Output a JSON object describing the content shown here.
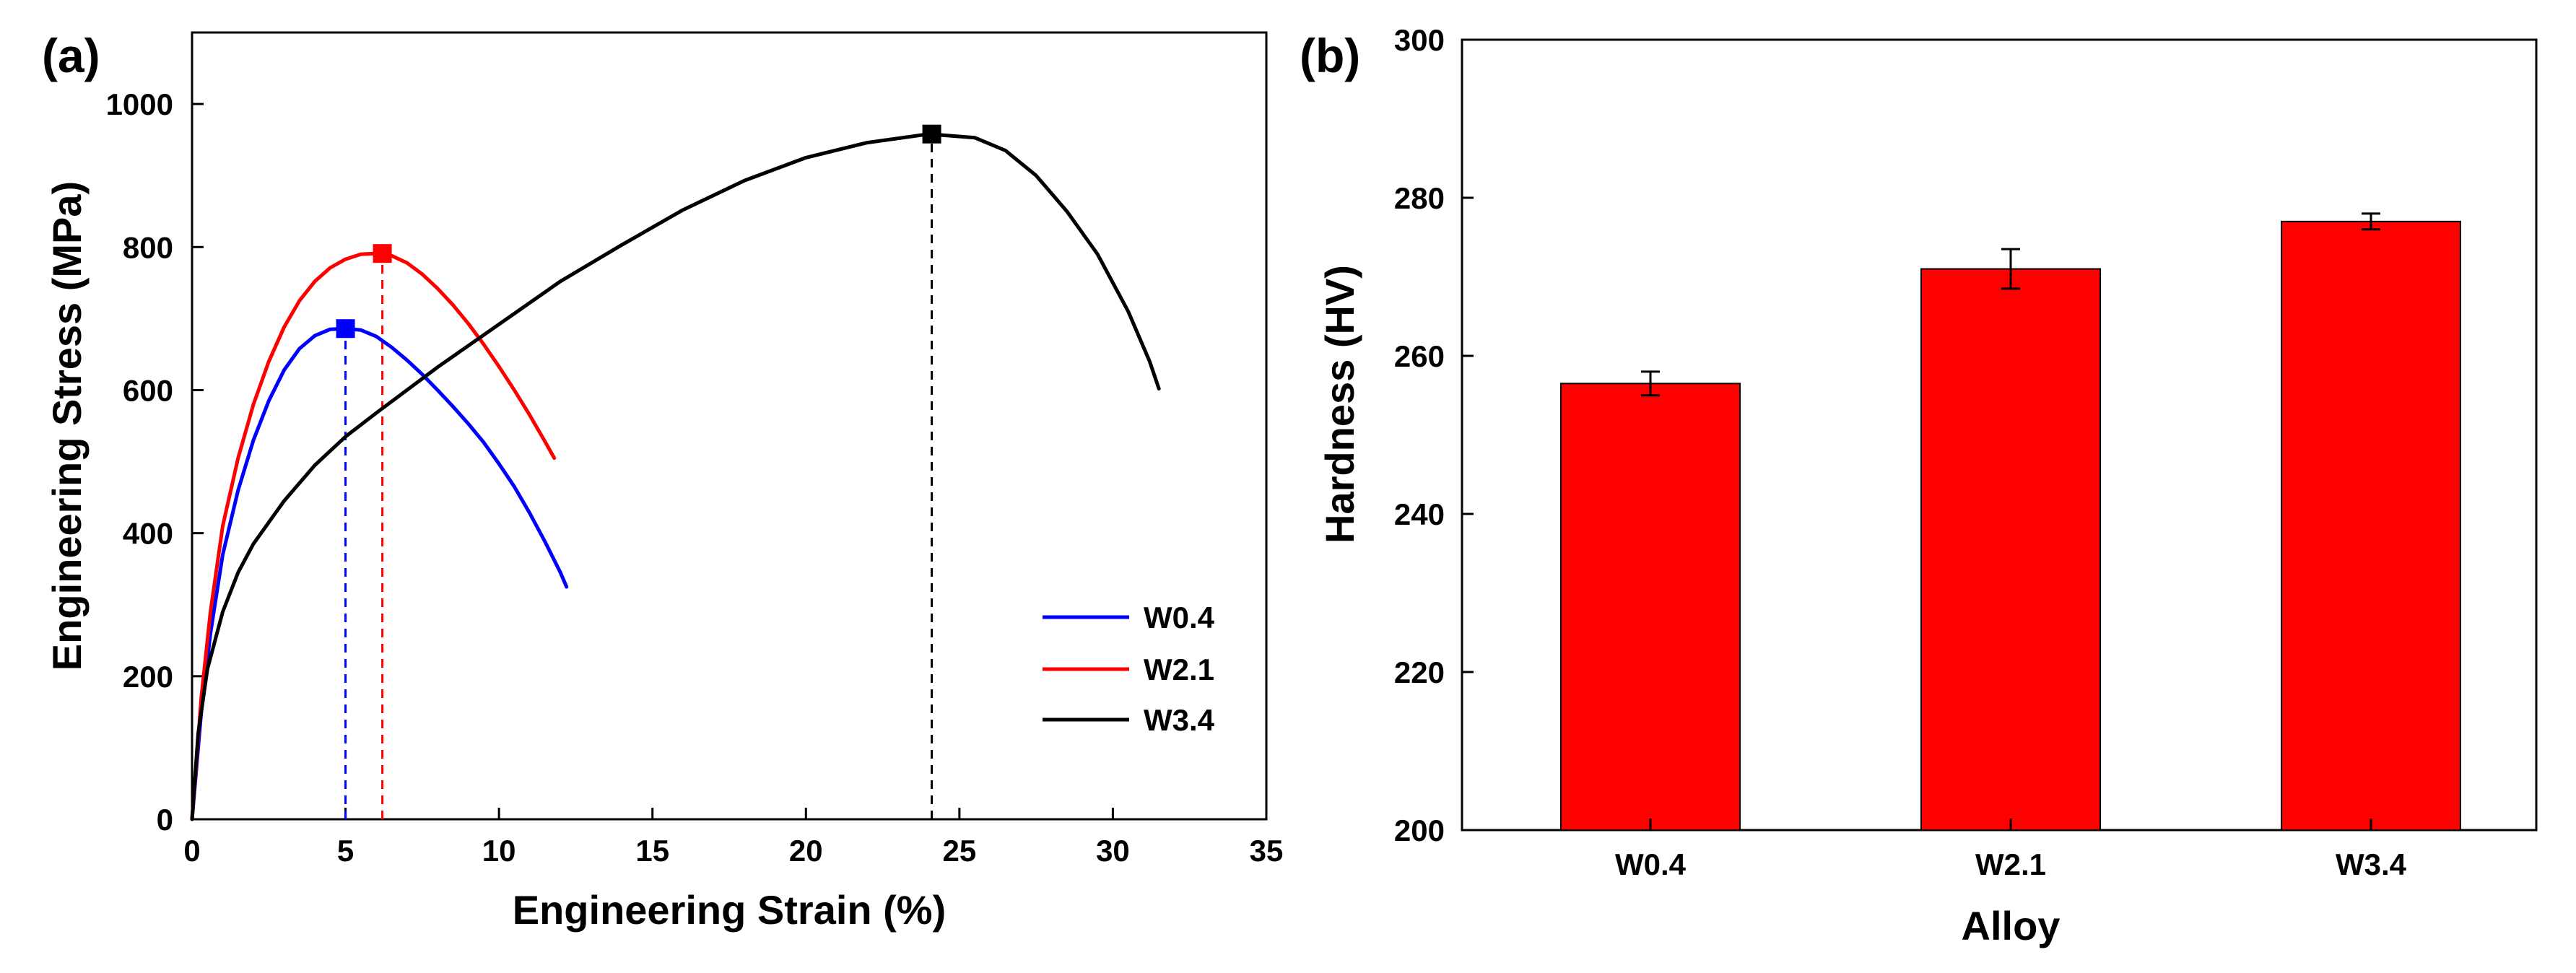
{
  "chart_data": [
    {
      "panel": "(a)",
      "type": "line",
      "xlabel": "Engineering Strain (%)",
      "ylabel": "Engineering Stress (MPa)",
      "xlim": [
        0,
        35
      ],
      "ylim": [
        0,
        1100
      ],
      "xticks": [
        "0",
        "5",
        "10",
        "15",
        "20",
        "25",
        "30",
        "35"
      ],
      "yticks": [
        "0",
        "200",
        "400",
        "600",
        "800",
        "1000"
      ],
      "legend_position": "bottom-right",
      "series": [
        {
          "name": "W0.4",
          "color": "#0000ff",
          "x": [
            0,
            0.3,
            0.6,
            1.0,
            1.5,
            2.0,
            2.5,
            3.0,
            3.5,
            4.0,
            4.5,
            5.0,
            5.5,
            6.0,
            6.5,
            7.0,
            7.5,
            8.0,
            8.5,
            9.0,
            9.5,
            10.0,
            10.5,
            11.0,
            11.5,
            12.0,
            12.2
          ],
          "y": [
            0,
            150,
            260,
            370,
            460,
            530,
            585,
            628,
            658,
            676,
            685,
            686,
            684,
            675,
            660,
            642,
            622,
            600,
            577,
            553,
            527,
            497,
            465,
            428,
            388,
            345,
            325
          ],
          "uts_marker": {
            "strain": 5.0,
            "stress": 686
          }
        },
        {
          "name": "W2.1",
          "color": "#ff0000",
          "x": [
            0,
            0.3,
            0.6,
            1.0,
            1.5,
            2.0,
            2.5,
            3.0,
            3.5,
            4.0,
            4.5,
            5.0,
            5.5,
            6.0,
            6.5,
            7.0,
            7.5,
            8.0,
            8.5,
            9.0,
            9.5,
            10.0,
            10.5,
            11.0,
            11.5,
            11.8
          ],
          "y": [
            0,
            170,
            290,
            410,
            505,
            580,
            640,
            688,
            725,
            752,
            771,
            783,
            790,
            791,
            788,
            778,
            762,
            742,
            719,
            693,
            664,
            633,
            600,
            565,
            528,
            505
          ],
          "uts_marker": {
            "strain": 6.2,
            "stress": 791
          }
        },
        {
          "name": "W3.4",
          "color": "#000000",
          "x": [
            0,
            0.2,
            0.5,
            1.0,
            1.5,
            2.0,
            3.0,
            4.0,
            5.0,
            6.0,
            8.0,
            10.0,
            12.0,
            14.0,
            16.0,
            18.0,
            20.0,
            22.0,
            24.0,
            25.5,
            26.5,
            27.5,
            28.5,
            29.5,
            30.5,
            31.2,
            31.5
          ],
          "y": [
            0,
            120,
            210,
            290,
            345,
            385,
            445,
            495,
            535,
            568,
            632,
            692,
            752,
            803,
            852,
            893,
            925,
            946,
            958,
            953,
            935,
            900,
            850,
            790,
            710,
            640,
            602
          ],
          "uts_marker": {
            "strain": 24.1,
            "stress": 958
          }
        }
      ]
    },
    {
      "panel": "(b)",
      "type": "bar",
      "xlabel": "Alloy",
      "ylabel": "Hardness (HV)",
      "ylim": [
        200,
        300
      ],
      "yticks": [
        "200",
        "220",
        "240",
        "260",
        "280",
        "300"
      ],
      "categories": [
        "W0.4",
        "W2.1",
        "W3.4"
      ],
      "values": [
        256.5,
        271,
        277
      ],
      "errors": [
        1.5,
        2.5,
        1.0
      ],
      "bar_color": "#ff0000"
    }
  ]
}
